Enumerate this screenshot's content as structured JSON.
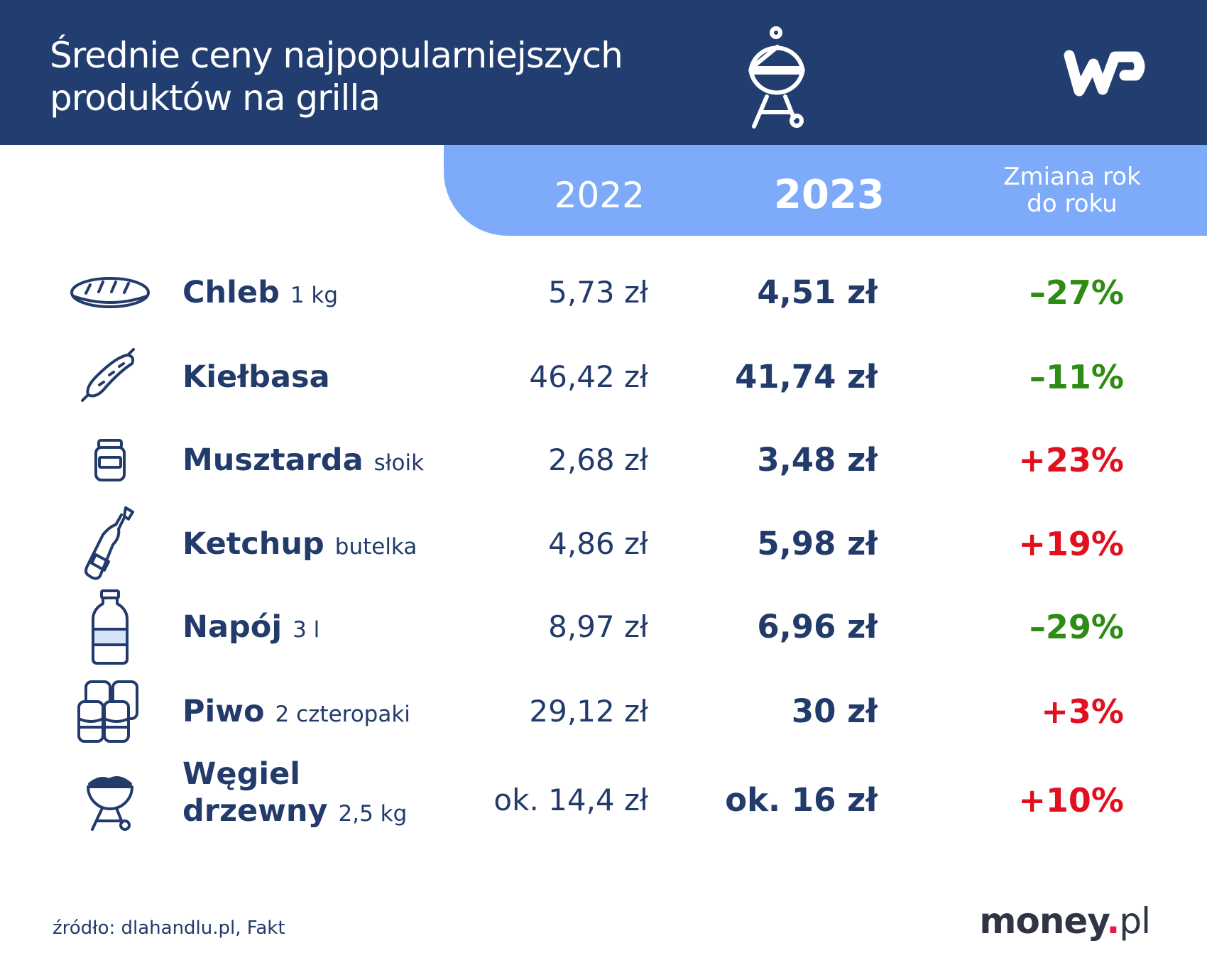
{
  "header": {
    "title_line1": "Średnie ceny najpopularniejszych",
    "title_line2": "produktów na grilla",
    "logo": "WP"
  },
  "columns": {
    "y2022": "2022",
    "y2023": "2023",
    "change_line1": "Zmiana rok",
    "change_line2": "do roku"
  },
  "colors": {
    "navy": "#223e70",
    "band": "#7eabf9",
    "decrease": "#2e8b13",
    "increase": "#e0101e"
  },
  "rows": [
    {
      "icon": "bread-icon",
      "name": "Chleb",
      "unit": "1 kg",
      "v2022": "5,73 zł",
      "v2023": "4,51 zł",
      "change": "–27%",
      "trend": "down"
    },
    {
      "icon": "sausage-icon",
      "name": "Kiełbasa",
      "unit": "",
      "v2022": "46,42 zł",
      "v2023": "41,74 zł",
      "change": "–11%",
      "trend": "down"
    },
    {
      "icon": "jar-icon",
      "name": "Musztarda",
      "unit": "słoik",
      "v2022": "2,68 zł",
      "v2023": "3,48 zł",
      "change": "+23%",
      "trend": "up"
    },
    {
      "icon": "bottle-icon",
      "name": "Ketchup",
      "unit": "butelka",
      "v2022": "4,86 zł",
      "v2023": "5,98 zł",
      "change": "+19%",
      "trend": "up"
    },
    {
      "icon": "drink-bottle-icon",
      "name": "Napój",
      "unit": "3 l",
      "v2022": "8,97 zł",
      "v2023": "6,96 zł",
      "change": "–29%",
      "trend": "down"
    },
    {
      "icon": "beer-cans-icon",
      "name": "Piwo",
      "unit": "2 czteropaki",
      "v2022": "29,12 zł",
      "v2023": "30 zł",
      "change": "+3%",
      "trend": "up"
    },
    {
      "icon": "grill-icon",
      "name": "Węgiel",
      "name2": "drzewny",
      "unit": "2,5 kg",
      "v2022": "ok. 14,4 zł",
      "v2023": "ok. 16 zł",
      "change": "+10%",
      "trend": "up"
    }
  ],
  "footer": {
    "source": "źródło: dlahandlu.pl, Fakt",
    "brand_main": "money",
    "brand_dot": ".",
    "brand_tld": "pl"
  }
}
